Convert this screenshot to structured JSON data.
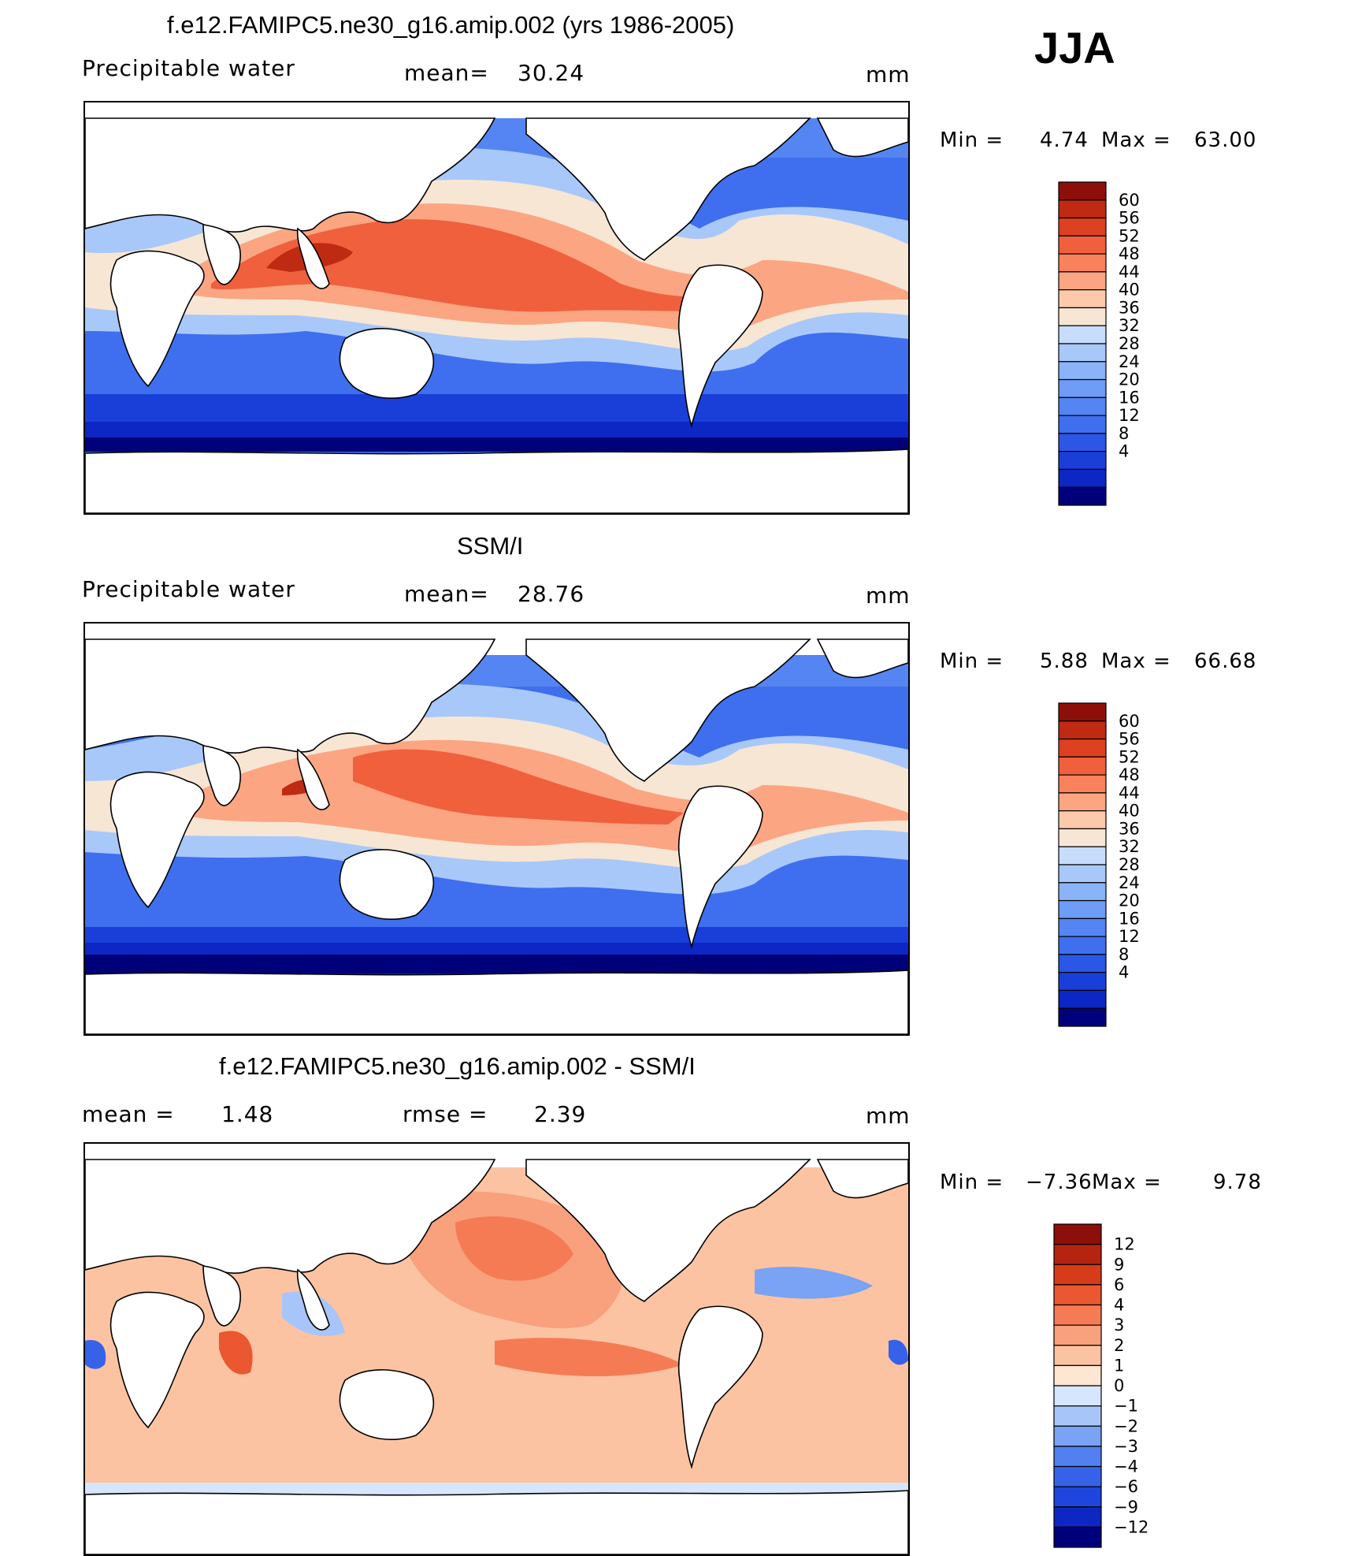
{
  "season": "JJA",
  "colors": {
    "clim": [
      "#00007a",
      "#0c27c4",
      "#1a3fd9",
      "#2b56e6",
      "#3f6fee",
      "#5585f2",
      "#6e9cf6",
      "#8ab3f8",
      "#a8c8fa",
      "#c8dcfb",
      "#f7e6d4",
      "#fcc9ab",
      "#fca583",
      "#f9825d",
      "#f0603d",
      "#dc4122",
      "#be2b12",
      "#8c0f0a"
    ],
    "diff": [
      "#00007a",
      "#0c27c4",
      "#1e45dc",
      "#3662ea",
      "#5280f0",
      "#7aa2f5",
      "#a8c5f9",
      "#d6e6fc",
      "#fde6d2",
      "#fcc3a2",
      "#f9a07d",
      "#f57b55",
      "#ea5730",
      "#d63b1a",
      "#b52410",
      "#8c0f0a"
    ]
  },
  "panels": [
    {
      "title": "f.e12.FAMIPC5.ne30_g16.amip.002 (yrs 1986-2005)",
      "left_label": "Precipitable water",
      "center_label": "mean=",
      "center_value": "30.24",
      "units": "mm",
      "min_label": "Min =",
      "min_value": "4.74",
      "max_label": "Max =",
      "max_value": "63.00",
      "colorbar": [
        "60",
        "56",
        "52",
        "48",
        "44",
        "40",
        "36",
        "32",
        "28",
        "24",
        "20",
        "16",
        "12",
        "8",
        "4"
      ]
    },
    {
      "title": "SSM/I",
      "left_label": "Precipitable water",
      "center_label": "mean=",
      "center_value": "28.76",
      "units": "mm",
      "min_label": "Min =",
      "min_value": "5.88",
      "max_label": "Max =",
      "max_value": "66.68",
      "colorbar": [
        "60",
        "56",
        "52",
        "48",
        "44",
        "40",
        "36",
        "32",
        "28",
        "24",
        "20",
        "16",
        "12",
        "8",
        "4"
      ]
    },
    {
      "title": "f.e12.FAMIPC5.ne30_g16.amip.002 - SSM/I",
      "left_label": "mean =",
      "left_value": "1.48",
      "center_label": "rmse =",
      "center_value": "2.39",
      "units": "mm",
      "min_label": "Min =",
      "min_value": "−7.36",
      "max_label": "Max =",
      "max_value": "9.78",
      "colorbar": [
        "12",
        "9",
        "6",
        "4",
        "3",
        "2",
        "1",
        "0",
        "−1",
        "−2",
        "−3",
        "−4",
        "−6",
        "−9",
        "−12"
      ]
    }
  ]
}
